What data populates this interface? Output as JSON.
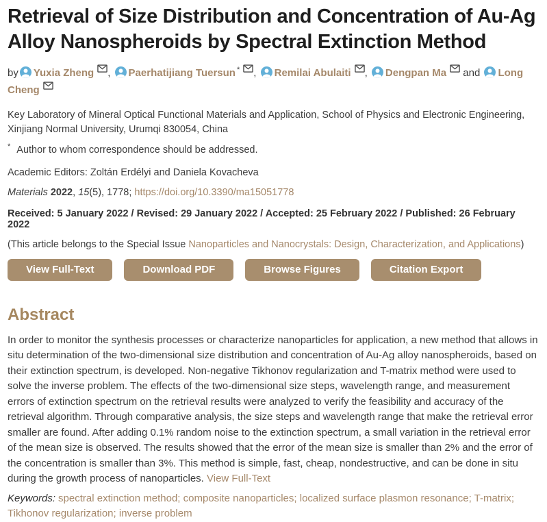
{
  "title": "Retrieval of Size Distribution and Concentration of Au-Ag Alloy Nanospheroids by Spectral Extinction Method",
  "byline": {
    "prefix": "by",
    "sep_comma": ", ",
    "sep_and": " and ",
    "authors": [
      {
        "name": "Yuxia Zheng",
        "corresponding": false
      },
      {
        "name": "Paerhatijiang Tuersun",
        "corresponding": true
      },
      {
        "name": "Remilai Abulaiti",
        "corresponding": false
      },
      {
        "name": "Dengpan Ma",
        "corresponding": false
      },
      {
        "name": "Long Cheng",
        "corresponding": false
      }
    ]
  },
  "affiliation": "Key Laboratory of Mineral Optical Functional Materials and Application, School of Physics and Electronic Engineering, Xinjiang Normal University, Urumqi 830054, China",
  "footnote": {
    "marker": "*",
    "text": "Author to whom correspondence should be addressed."
  },
  "academic_editors": "Academic Editors: Zoltán Erdélyi and Daniela Kovacheva",
  "citation": {
    "journal": "Materials",
    "year": "2022",
    "sep": ", ",
    "volume": "15",
    "issue_pages": "(5), 1778; ",
    "doi": "https://doi.org/10.3390/ma15051778"
  },
  "dates": "Received: 5 January 2022 / Revised: 29 January 2022 / Accepted: 25 February 2022 / Published: 26 February 2022",
  "special_issue": {
    "prefix": "(This article belongs to the Special Issue ",
    "link": "Nanoparticles and Nanocrystals: Design, Characterization, and Applications",
    "suffix": ")"
  },
  "buttons": [
    {
      "label": "View Full-Text",
      "name": "view-full-text-button"
    },
    {
      "label": "Download PDF",
      "name": "download-pdf-button"
    },
    {
      "label": "Browse Figures",
      "name": "browse-figures-button"
    },
    {
      "label": "Citation Export",
      "name": "citation-export-button"
    }
  ],
  "abstract": {
    "heading": "Abstract",
    "text": "In order to monitor the synthesis processes or characterize nanoparticles for application, a new method that allows in situ determination of the two-dimensional size distribution and concentration of Au-Ag alloy nanospheroids, based on their extinction spectrum, is developed. Non-negative Tikhonov regularization and T-matrix method were used to solve the inverse problem. The effects of the two-dimensional size steps, wavelength range, and measurement errors of extinction spectrum on the retrieval results were analyzed to verify the feasibility and accuracy of the retrieval algorithm. Through comparative analysis, the size steps and wavelength range that make the retrieval error smaller are found. After adding 0.1% random noise to the extinction spectrum, a small variation in the retrieval error of the mean size is observed. The results showed that the error of the mean size is smaller than 2% and the error of the concentration is smaller than 3%. This method is simple, fast, cheap, nondestructive, and can be done in situ during the growth process of nanoparticles.",
    "view_full_text": "View Full-Text"
  },
  "keywords": {
    "label": "Keywords:",
    "separator": "; ",
    "items": [
      "spectral extinction method",
      "composite nanoparticles",
      "localized surface plasmon resonance",
      "T-matrix",
      "Tikhonov regularization",
      "inverse problem"
    ]
  },
  "colors": {
    "accent_link": "#a5886a",
    "button_bg": "#a88e6e",
    "heading": "#a5875f",
    "person_icon": "#62b0d8",
    "title_text": "#1e1e1e",
    "body_text": "#3c3c3c"
  }
}
